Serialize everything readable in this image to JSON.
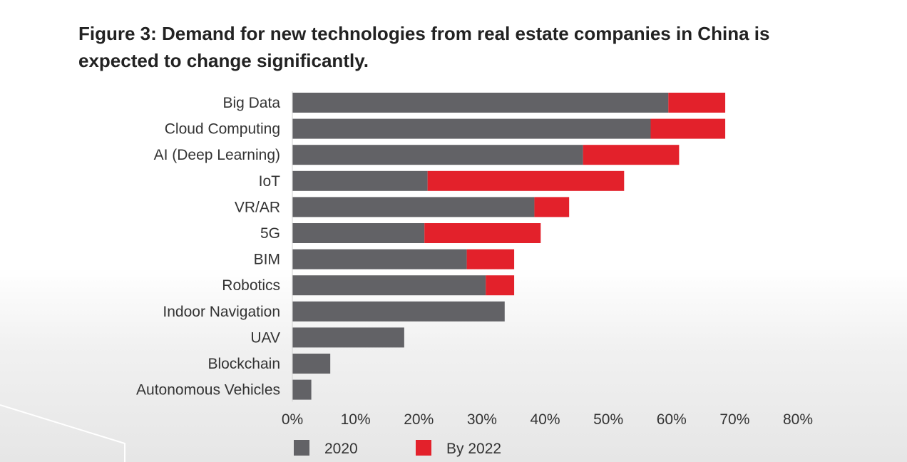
{
  "title_line1": "Figure 3: Demand for new technologies from real estate companies in China is",
  "title_line2": "expected to change significantly.",
  "chart_data": {
    "type": "bar",
    "orientation": "horizontal",
    "stacked": true,
    "title": "Figure 3: Demand for new technologies from real estate companies in China is expected to change significantly.",
    "categories": [
      "Big Data",
      "Cloud Computing",
      "AI (Deep Learning)",
      "IoT",
      "VR/AR",
      "5G",
      "BIM",
      "Robotics",
      "Indoor Navigation",
      "UAV",
      "Blockchain",
      "Autonomous Vehicles"
    ],
    "series": [
      {
        "name": "2020",
        "color": "#626266",
        "values": [
          59.5,
          56.7,
          46.0,
          21.4,
          38.3,
          20.9,
          27.6,
          30.6,
          33.6,
          17.7,
          6.0,
          3.0
        ]
      },
      {
        "name": "By 2022",
        "color": "#e3212b",
        "values": [
          9.0,
          11.8,
          15.2,
          31.1,
          5.5,
          18.4,
          7.5,
          4.5,
          0,
          0,
          0,
          0
        ]
      }
    ],
    "xlim": [
      0,
      80
    ],
    "xticks": [
      "0%",
      "10%",
      "20%",
      "30%",
      "40%",
      "50%",
      "60%",
      "70%",
      "80%"
    ],
    "xlabel": "",
    "ylabel": "",
    "grid": false,
    "legend": {
      "position": "bottom",
      "entries": [
        "2020",
        "By 2022"
      ]
    }
  }
}
